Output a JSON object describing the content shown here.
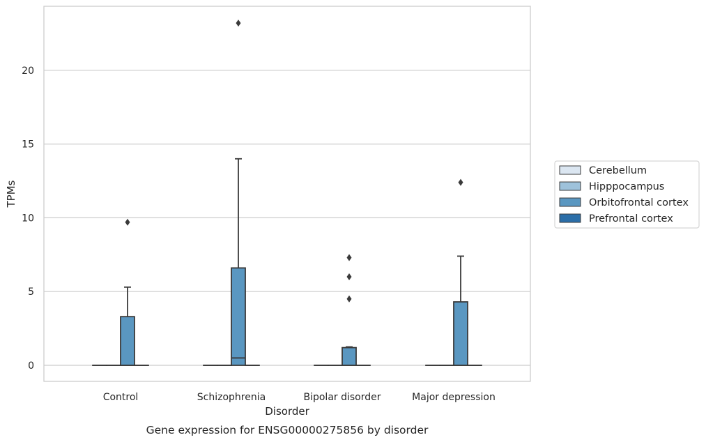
{
  "chart_data": {
    "type": "box",
    "title": "",
    "caption": "Gene expression for ENSG00000275856 by disorder",
    "xlabel": "Disorder",
    "ylabel": "TPMs",
    "ylim": [
      -1.1,
      24.2
    ],
    "yticks": [
      0,
      5,
      10,
      15,
      20
    ],
    "grid": "horizontal",
    "legend_placement": "right",
    "categories": [
      "Control",
      "Schizophrenia",
      "Bipolar disorder",
      "Major depression"
    ],
    "series": [
      {
        "name": "Cerebellum",
        "color": "#dbe6f1",
        "boxes": [
          {
            "min": 0,
            "q1": 0,
            "median": 0,
            "q3": 0,
            "max": 0,
            "outliers": []
          },
          {
            "min": 0,
            "q1": 0,
            "median": 0,
            "q3": 0,
            "max": 0,
            "outliers": []
          },
          {
            "min": 0,
            "q1": 0,
            "median": 0,
            "q3": 0,
            "max": 0,
            "outliers": []
          },
          {
            "min": 0,
            "q1": 0,
            "median": 0,
            "q3": 0,
            "max": 0,
            "outliers": []
          }
        ]
      },
      {
        "name": "Hipppocampus",
        "color": "#9ec2db",
        "boxes": [
          {
            "min": 0,
            "q1": 0,
            "median": 0,
            "q3": 0,
            "max": 0,
            "outliers": []
          },
          {
            "min": 0,
            "q1": 0,
            "median": 0,
            "q3": 0,
            "max": 0,
            "outliers": []
          },
          {
            "min": 0,
            "q1": 0,
            "median": 0,
            "q3": 0,
            "max": 0,
            "outliers": []
          },
          {
            "min": 0,
            "q1": 0,
            "median": 0,
            "q3": 0,
            "max": 0,
            "outliers": []
          }
        ]
      },
      {
        "name": "Orbitofrontal cortex",
        "color": "#5a97c1",
        "boxes": [
          {
            "min": 0,
            "q1": 0,
            "median": 0,
            "q3": 3.3,
            "max": 5.3,
            "outliers": [
              9.7
            ]
          },
          {
            "min": 0,
            "q1": 0,
            "median": 0.5,
            "q3": 6.6,
            "max": 14.0,
            "outliers": [
              23.2
            ]
          },
          {
            "min": 0,
            "q1": 0,
            "median": 0,
            "q3": 1.2,
            "max": 1.25,
            "outliers": [
              4.5,
              6.0,
              7.3
            ]
          },
          {
            "min": 0,
            "q1": 0,
            "median": 0,
            "q3": 4.3,
            "max": 7.4,
            "outliers": [
              12.4
            ]
          }
        ]
      },
      {
        "name": "Prefrontal cortex",
        "color": "#2b6ea8",
        "boxes": [
          {
            "min": 0,
            "q1": 0,
            "median": 0,
            "q3": 0,
            "max": 0,
            "outliers": []
          },
          {
            "min": 0,
            "q1": 0,
            "median": 0,
            "q3": 0,
            "max": 0,
            "outliers": []
          },
          {
            "min": 0,
            "q1": 0,
            "median": 0,
            "q3": 0,
            "max": 0,
            "outliers": []
          },
          {
            "min": 0,
            "q1": 0,
            "median": 0,
            "q3": 0,
            "max": 0,
            "outliers": []
          }
        ]
      }
    ]
  }
}
